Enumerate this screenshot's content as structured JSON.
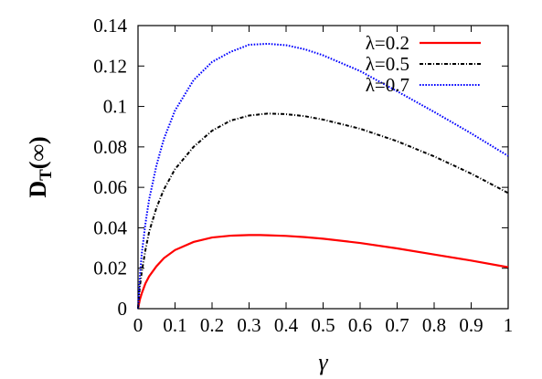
{
  "chart_data": {
    "type": "line",
    "xlabel": "γ",
    "ylabel": "D",
    "ylabel_sub": "T",
    "ylabel_suffix": "(∞)",
    "xlim": [
      0,
      1
    ],
    "ylim": [
      0,
      0.14
    ],
    "xticks": [
      0,
      0.1,
      0.2,
      0.3,
      0.4,
      0.5,
      0.6,
      0.7,
      0.8,
      0.9,
      1
    ],
    "xtick_labels": [
      "0",
      "0.1",
      "0.2",
      "0.3",
      "0.4",
      "0.5",
      "0.6",
      "0.7",
      "0.8",
      "0.9",
      "1"
    ],
    "yticks": [
      0,
      0.02,
      0.04,
      0.06,
      0.08,
      0.1,
      0.12,
      0.14
    ],
    "ytick_labels": [
      "0",
      "0.02",
      "0.04",
      "0.06",
      "0.08",
      "0.1",
      "0.12",
      "0.14"
    ],
    "grid": false,
    "legend_position": "top-right",
    "series": [
      {
        "name": "λ=0.2",
        "color": "#ff0000",
        "style": "solid",
        "x": [
          0,
          0.005,
          0.01,
          0.02,
          0.03,
          0.05,
          0.07,
          0.1,
          0.15,
          0.2,
          0.25,
          0.3,
          0.33,
          0.35,
          0.4,
          0.45,
          0.5,
          0.6,
          0.7,
          0.8,
          0.9,
          1.0
        ],
        "values": [
          0,
          0.0045,
          0.0075,
          0.0125,
          0.016,
          0.021,
          0.025,
          0.029,
          0.033,
          0.0352,
          0.0361,
          0.0364,
          0.0364,
          0.0363,
          0.036,
          0.0354,
          0.0346,
          0.0325,
          0.0298,
          0.0268,
          0.0238,
          0.0205
        ]
      },
      {
        "name": "λ=0.5",
        "color": "#000000",
        "style": "dash-dot",
        "x": [
          0,
          0.005,
          0.01,
          0.02,
          0.03,
          0.05,
          0.07,
          0.1,
          0.15,
          0.2,
          0.25,
          0.3,
          0.35,
          0.4,
          0.45,
          0.5,
          0.6,
          0.7,
          0.8,
          0.9,
          1.0
        ],
        "values": [
          0,
          0.011,
          0.018,
          0.029,
          0.038,
          0.05,
          0.059,
          0.069,
          0.08,
          0.088,
          0.093,
          0.0955,
          0.0965,
          0.0962,
          0.0952,
          0.0935,
          0.089,
          0.0828,
          0.0753,
          0.0668,
          0.0572
        ]
      },
      {
        "name": "λ=0.7",
        "color": "#0000ff",
        "style": "dotted",
        "x": [
          0,
          0.005,
          0.01,
          0.02,
          0.03,
          0.05,
          0.07,
          0.1,
          0.15,
          0.2,
          0.25,
          0.3,
          0.35,
          0.4,
          0.45,
          0.5,
          0.6,
          0.7,
          0.8,
          0.9,
          1.0
        ],
        "values": [
          0,
          0.016,
          0.027,
          0.042,
          0.054,
          0.071,
          0.084,
          0.098,
          0.113,
          0.122,
          0.127,
          0.1305,
          0.131,
          0.1303,
          0.1283,
          0.1253,
          0.1175,
          0.1075,
          0.0973,
          0.0867,
          0.0755
        ]
      }
    ]
  }
}
